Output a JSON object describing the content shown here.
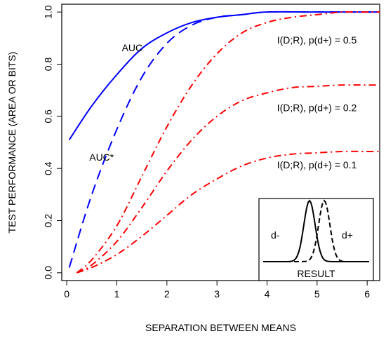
{
  "chart_data": {
    "type": "line",
    "title": "",
    "xlabel": "SEPARATION BETWEEN MEANS",
    "ylabel": "TEST PERFORMANCE (AREA OR BITS)",
    "xlim": [
      -0.1,
      6.25
    ],
    "ylim": [
      -0.03,
      1.03
    ],
    "x_ticks": [
      0,
      1,
      2,
      3,
      4,
      5,
      6
    ],
    "y_ticks": [
      "0.0",
      "0.2",
      "0.4",
      "0.6",
      "0.8",
      "1.0"
    ],
    "grid": false,
    "series": [
      {
        "name": "AUC",
        "color": "#0000ff",
        "dash": "solid",
        "x": [
          0.05,
          0.5,
          1.0,
          1.5,
          2.0,
          2.5,
          3.0,
          3.5,
          4.0,
          5.0,
          6.25
        ],
        "y": [
          0.51,
          0.64,
          0.76,
          0.86,
          0.92,
          0.96,
          0.98,
          0.99,
          1.0,
          1.0,
          1.0
        ]
      },
      {
        "name": "AUC*",
        "color": "#0000ff",
        "dash": "dashed",
        "x": [
          0.05,
          0.5,
          1.0,
          1.5,
          2.0,
          2.5,
          3.0,
          3.5,
          4.0,
          5.0,
          6.25
        ],
        "y": [
          0.02,
          0.3,
          0.55,
          0.75,
          0.88,
          0.95,
          0.98,
          0.99,
          1.0,
          1.0,
          1.0
        ]
      },
      {
        "name": "I(D;R), p(d+) = 0.5",
        "color": "#ff0000",
        "dash": "dashdot",
        "x": [
          0.2,
          0.5,
          1.0,
          1.5,
          2.0,
          2.5,
          3.0,
          3.5,
          4.0,
          4.5,
          5.0,
          5.5,
          6.0,
          6.25
        ],
        "y": [
          0.0,
          0.05,
          0.18,
          0.37,
          0.56,
          0.72,
          0.84,
          0.92,
          0.96,
          0.98,
          0.99,
          1.0,
          1.0,
          1.0
        ]
      },
      {
        "name": "I(D;R), p(d+) = 0.2",
        "color": "#ff0000",
        "dash": "dashdot",
        "x": [
          0.2,
          0.5,
          1.0,
          1.5,
          2.0,
          2.5,
          3.0,
          3.5,
          4.0,
          4.5,
          5.0,
          5.5,
          6.0,
          6.25
        ],
        "y": [
          0.0,
          0.03,
          0.12,
          0.25,
          0.39,
          0.51,
          0.6,
          0.66,
          0.69,
          0.71,
          0.715,
          0.72,
          0.72,
          0.72
        ]
      },
      {
        "name": "I(D;R), p(d+) = 0.1",
        "color": "#ff0000",
        "dash": "dashdot",
        "x": [
          0.2,
          0.5,
          1.0,
          1.5,
          2.0,
          2.5,
          3.0,
          3.5,
          4.0,
          4.5,
          5.0,
          5.5,
          6.0,
          6.25
        ],
        "y": [
          0.0,
          0.02,
          0.07,
          0.14,
          0.22,
          0.3,
          0.36,
          0.41,
          0.44,
          0.455,
          0.46,
          0.465,
          0.465,
          0.465
        ]
      }
    ],
    "annotations": [
      {
        "text": "AUC",
        "x": 1.1,
        "y": 0.85
      },
      {
        "text": "AUC*",
        "x": 0.45,
        "y": 0.43
      },
      {
        "text": "I(D;R), p(d+) = 0.5",
        "x": 4.2,
        "y": 0.88
      },
      {
        "text": "I(D;R), p(d+) = 0.2",
        "x": 4.2,
        "y": 0.62
      },
      {
        "text": "I(D;R), p(d+) = 0.1",
        "x": 4.2,
        "y": 0.4
      }
    ],
    "inset": {
      "xlabel": "RESULT",
      "labels": [
        "d-",
        "d+"
      ]
    }
  }
}
